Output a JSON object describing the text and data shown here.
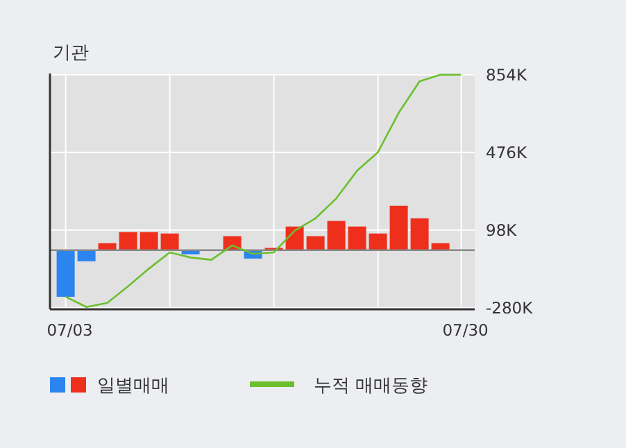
{
  "chart_data": {
    "type": "bar",
    "title": "기관",
    "categories": [
      "07/03",
      null,
      null,
      null,
      null,
      null,
      null,
      null,
      null,
      null,
      null,
      null,
      null,
      null,
      null,
      null,
      null,
      null,
      null,
      "07/30"
    ],
    "series": [
      {
        "name": "일별매매",
        "colors": [
          "#2c84ee",
          "#2c84ee",
          "#ee2f1c",
          "#ee2f1c",
          "#ee2f1c",
          "#ee2f1c",
          "#2c84ee",
          "#ee2f1c",
          "#ee2f1c",
          "#2c84ee",
          "#ee2f1c",
          "#ee2f1c",
          "#ee2f1c",
          "#ee2f1c",
          "#ee2f1c",
          "#ee2f1c",
          "#ee2f1c",
          "#ee2f1c",
          "#ee2f1c",
          "#ee2f1c"
        ],
        "values": [
          -227,
          -54,
          34,
          88,
          88,
          81,
          -20,
          0,
          68,
          -41,
          11,
          115,
          68,
          142,
          115,
          81,
          216,
          155,
          34,
          0
        ]
      },
      {
        "name": "누적 매매동향",
        "type": "line",
        "color": "#6bbf2e",
        "values": [
          -227,
          -277,
          -257,
          -176,
          -90,
          -11,
          -36,
          -47,
          23,
          -18,
          -11,
          95,
          155,
          252,
          387,
          477,
          669,
          822,
          854,
          854
        ]
      }
    ],
    "ylim": [
      -288,
      860
    ],
    "yticks": [
      {
        "value": 854,
        "label": "854K"
      },
      {
        "value": 476,
        "label": "476K"
      },
      {
        "value": 98,
        "label": "98K"
      },
      {
        "value": -280,
        "label": "-280K"
      }
    ],
    "grid": true,
    "legend": "bottom"
  }
}
